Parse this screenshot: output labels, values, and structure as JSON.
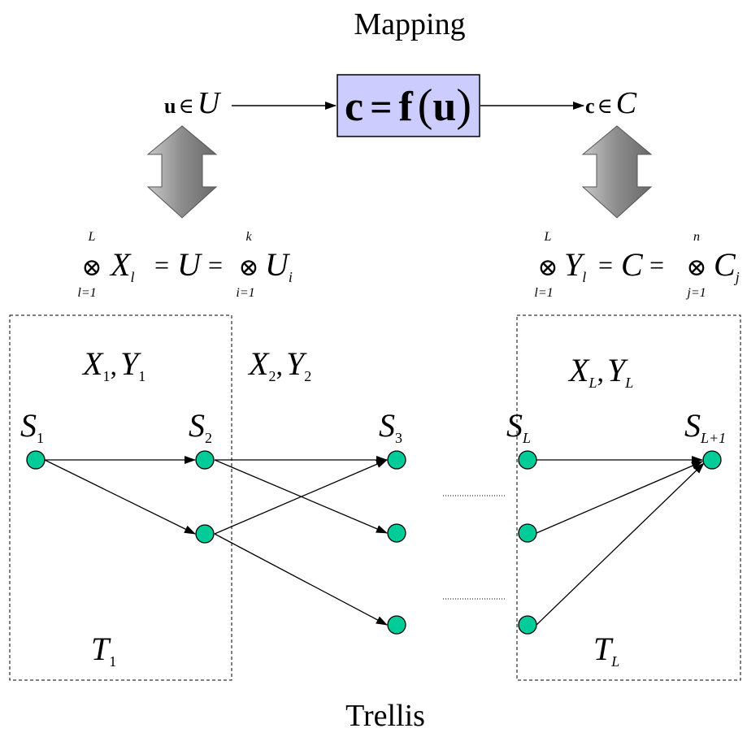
{
  "mapping": {
    "title": "Mapping",
    "input_vector": "u",
    "input_set": "U",
    "box_lhs": "c",
    "box_func": "f",
    "box_arg": "u",
    "output_vector": "c",
    "output_set": "C",
    "member_sym": "∈",
    "eq_sym": "=",
    "box_color": "#ccccff"
  },
  "left_product": {
    "op": "⊗",
    "upper1": "L",
    "lower1": "l=1",
    "set1": "X",
    "sub1": "l",
    "set_mid": "U",
    "upper2": "k",
    "lower2": "i=1",
    "set2": "U",
    "sub2": "i",
    "eq": "="
  },
  "right_product": {
    "op": "⊗",
    "upper1": "L",
    "lower1": "l=1",
    "set1": "Y",
    "sub1": "l",
    "set_mid": "C",
    "upper2": "n",
    "lower2": "j=1",
    "set2": "C",
    "sub2": "j",
    "eq": "="
  },
  "trellis": {
    "title": "Trellis",
    "section1": {
      "x": "X",
      "xsub": "1",
      "y": "Y",
      "ysub": "1",
      "sep": ","
    },
    "section2": {
      "x": "X",
      "xsub": "2",
      "y": "Y",
      "ysub": "2",
      "sep": ","
    },
    "sectionL": {
      "x": "X",
      "xsub": "L",
      "y": "Y",
      "ysub": "L",
      "sep": ","
    },
    "states": [
      {
        "letter": "S",
        "sub": "1"
      },
      {
        "letter": "S",
        "sub": "2"
      },
      {
        "letter": "S",
        "sub": "3"
      },
      {
        "letter": "S",
        "sub": "L"
      },
      {
        "letter": "S",
        "sub": "L+1"
      }
    ],
    "t1": {
      "letter": "T",
      "sub": "1"
    },
    "tL": {
      "letter": "T",
      "sub": "L"
    },
    "node_color": "#00cc99"
  }
}
